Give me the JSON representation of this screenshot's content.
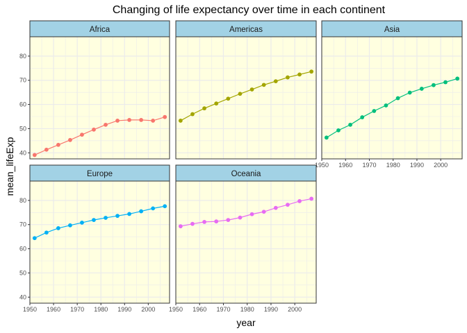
{
  "chart_data": {
    "type": "line",
    "title": "Changing of life expectancy over time in each continent",
    "xlabel": "year",
    "ylabel": "mean_lifeExp",
    "x": [
      1952,
      1957,
      1962,
      1967,
      1972,
      1977,
      1982,
      1987,
      1992,
      1997,
      2002,
      2007
    ],
    "xlim": [
      1950,
      2009
    ],
    "ylim": [
      37.5,
      88
    ],
    "xticks": [
      1950,
      1960,
      1970,
      1980,
      1990,
      2000
    ],
    "yticks": [
      40,
      50,
      60,
      70,
      80
    ],
    "grid": true,
    "panel_background": "#FFFFE0",
    "strip_background": "#A2D2E5",
    "series": [
      {
        "name": "Africa",
        "color": "#F8766D",
        "values": [
          39.1,
          41.3,
          43.3,
          45.3,
          47.5,
          49.6,
          51.6,
          53.3,
          53.6,
          53.6,
          53.3,
          54.8
        ]
      },
      {
        "name": "Americas",
        "color": "#A3A500",
        "values": [
          53.3,
          56.0,
          58.4,
          60.4,
          62.4,
          64.4,
          66.2,
          68.1,
          69.6,
          71.2,
          72.4,
          73.6
        ]
      },
      {
        "name": "Asia",
        "color": "#00BF7D",
        "values": [
          46.3,
          49.3,
          51.6,
          54.7,
          57.3,
          59.6,
          62.6,
          64.9,
          66.5,
          68.0,
          69.2,
          70.7
        ]
      },
      {
        "name": "Europe",
        "color": "#00B0F6",
        "values": [
          64.4,
          66.7,
          68.5,
          69.7,
          70.8,
          71.9,
          72.8,
          73.6,
          74.4,
          75.5,
          76.7,
          77.6
        ]
      },
      {
        "name": "Oceania",
        "color": "#E76BF3",
        "values": [
          69.3,
          70.3,
          71.1,
          71.3,
          71.9,
          72.9,
          74.3,
          75.3,
          76.9,
          78.2,
          79.7,
          80.7
        ]
      }
    ]
  }
}
